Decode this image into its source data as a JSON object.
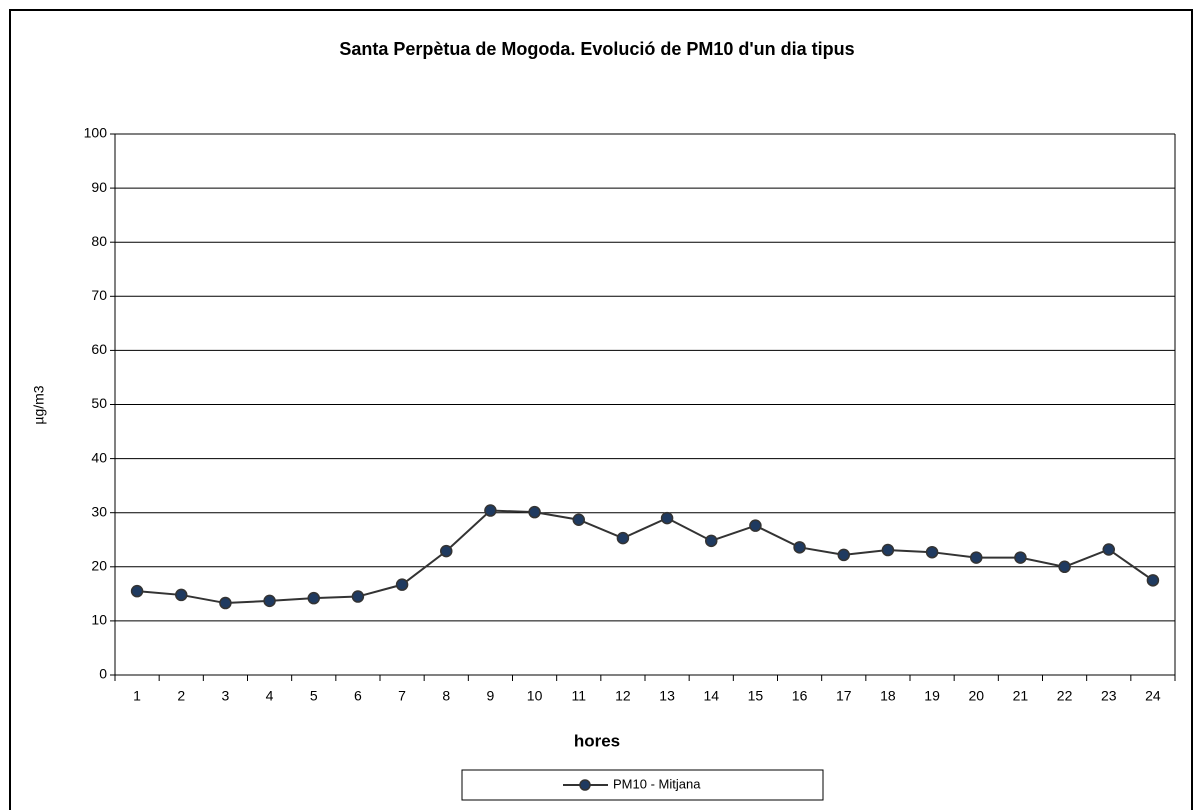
{
  "chart_data": {
    "type": "line",
    "title": "Santa Perpètua de Mogoda. Evolució de PM10  d'un dia tipus",
    "x_label": "hores",
    "y_label": "µg/m3",
    "categories": [
      "1",
      "2",
      "3",
      "4",
      "5",
      "6",
      "7",
      "8",
      "9",
      "10",
      "11",
      "12",
      "13",
      "14",
      "15",
      "16",
      "17",
      "18",
      "19",
      "20",
      "21",
      "22",
      "23",
      "24"
    ],
    "series": [
      {
        "name": "PM10 -  Mitjana",
        "color": "#333333",
        "marker_color": "#1f3a60",
        "values": [
          15.5,
          14.8,
          13.3,
          13.7,
          14.2,
          14.5,
          16.7,
          22.9,
          30.4,
          30.1,
          28.7,
          25.3,
          29.0,
          24.8,
          27.6,
          23.6,
          22.2,
          23.1,
          22.7,
          21.7,
          21.7,
          20.0,
          23.2,
          17.5
        ]
      }
    ],
    "ylim": [
      0,
      100
    ],
    "yticks": [
      0,
      10,
      20,
      30,
      40,
      50,
      60,
      70,
      80,
      90,
      100
    ],
    "grid": true,
    "legend": "bottom"
  }
}
